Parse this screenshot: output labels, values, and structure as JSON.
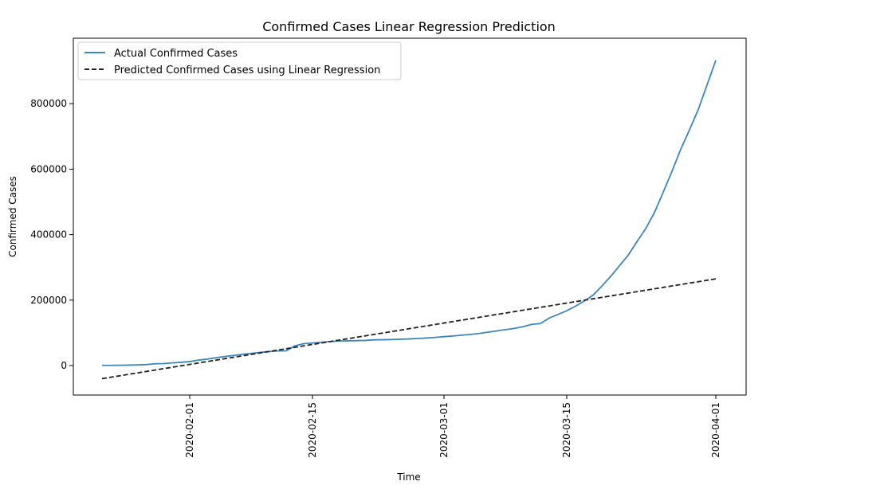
{
  "chart_data": {
    "type": "line",
    "title": "Confirmed Cases Linear Regression Prediction",
    "xlabel": "Time",
    "ylabel": "Confirmed Cases",
    "x_axis_type": "date",
    "xlim": [
      "2020-01-22",
      "2020-04-01"
    ],
    "ylim": [
      -90000,
      1000000
    ],
    "x_ticks": [
      "2020-02-01",
      "2020-02-15",
      "2020-03-01",
      "2020-03-15",
      "2020-04-01"
    ],
    "y_ticks": [
      0,
      200000,
      400000,
      600000,
      800000
    ],
    "grid": false,
    "legend_position": "upper-left",
    "series": [
      {
        "name": "Actual Confirmed Cases",
        "style": "solid",
        "color": "#3a87c0",
        "points": [
          [
            "2020-01-22",
            555
          ],
          [
            "2020-01-23",
            650
          ],
          [
            "2020-01-24",
            940
          ],
          [
            "2020-01-25",
            1440
          ],
          [
            "2020-01-26",
            2120
          ],
          [
            "2020-01-27",
            2930
          ],
          [
            "2020-01-28",
            5580
          ],
          [
            "2020-01-29",
            6170
          ],
          [
            "2020-01-30",
            8240
          ],
          [
            "2020-01-31",
            9930
          ],
          [
            "2020-02-01",
            12040
          ],
          [
            "2020-02-02",
            16790
          ],
          [
            "2020-02-03",
            19880
          ],
          [
            "2020-02-04",
            23900
          ],
          [
            "2020-02-05",
            27640
          ],
          [
            "2020-02-06",
            30820
          ],
          [
            "2020-02-07",
            34400
          ],
          [
            "2020-02-08",
            37120
          ],
          [
            "2020-02-09",
            40150
          ],
          [
            "2020-02-10",
            42760
          ],
          [
            "2020-02-11",
            44800
          ],
          [
            "2020-02-12",
            45200
          ],
          [
            "2020-02-13",
            60370
          ],
          [
            "2020-02-14",
            66890
          ],
          [
            "2020-02-15",
            69030
          ],
          [
            "2020-02-16",
            71230
          ],
          [
            "2020-02-17",
            73260
          ],
          [
            "2020-02-18",
            75140
          ],
          [
            "2020-02-19",
            75640
          ],
          [
            "2020-02-20",
            76200
          ],
          [
            "2020-02-21",
            76840
          ],
          [
            "2020-02-22",
            78600
          ],
          [
            "2020-02-23",
            78980
          ],
          [
            "2020-02-24",
            79540
          ],
          [
            "2020-02-25",
            80410
          ],
          [
            "2020-02-26",
            81390
          ],
          [
            "2020-02-27",
            82740
          ],
          [
            "2020-02-28",
            84120
          ],
          [
            "2020-02-29",
            86010
          ],
          [
            "2020-03-01",
            88370
          ],
          [
            "2020-03-02",
            90310
          ],
          [
            "2020-03-03",
            92840
          ],
          [
            "2020-03-04",
            95120
          ],
          [
            "2020-03-05",
            97890
          ],
          [
            "2020-03-06",
            101800
          ],
          [
            "2020-03-07",
            105840
          ],
          [
            "2020-03-08",
            109820
          ],
          [
            "2020-03-09",
            113580
          ],
          [
            "2020-03-10",
            118590
          ],
          [
            "2020-03-11",
            125860
          ],
          [
            "2020-03-12",
            128340
          ],
          [
            "2020-03-13",
            145210
          ],
          [
            "2020-03-14",
            156100
          ],
          [
            "2020-03-15",
            167450
          ],
          [
            "2020-03-16",
            181550
          ],
          [
            "2020-03-17",
            197100
          ],
          [
            "2020-03-18",
            214900
          ],
          [
            "2020-03-19",
            242700
          ],
          [
            "2020-03-20",
            272200
          ],
          [
            "2020-03-21",
            304500
          ],
          [
            "2020-03-22",
            336900
          ],
          [
            "2020-03-23",
            378300
          ],
          [
            "2020-03-24",
            418000
          ],
          [
            "2020-03-25",
            467600
          ],
          [
            "2020-03-26",
            529600
          ],
          [
            "2020-03-27",
            593300
          ],
          [
            "2020-03-28",
            660700
          ],
          [
            "2020-03-29",
            720100
          ],
          [
            "2020-03-30",
            782400
          ],
          [
            "2020-03-31",
            857500
          ],
          [
            "2020-04-01",
            932600
          ]
        ]
      },
      {
        "name": "Predicted Confirmed Cases using Linear Regression",
        "style": "dashed",
        "color": "#222222",
        "points": [
          [
            "2020-01-22",
            -40000
          ],
          [
            "2020-04-01",
            265000
          ]
        ]
      }
    ]
  }
}
